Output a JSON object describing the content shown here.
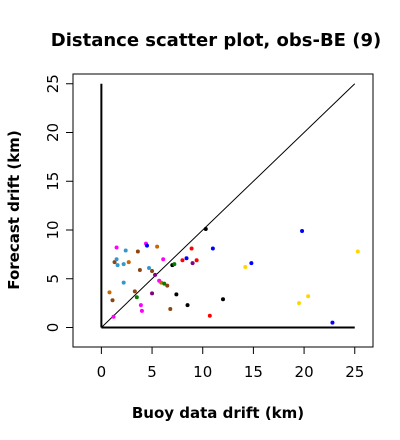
{
  "chart_data": {
    "type": "scatter",
    "title": "Distance scatter plot, obs-BE (9)",
    "xlabel": "Buoy data drift (km)",
    "ylabel": "Forecast drift (km)",
    "xlim": [
      -2.8,
      26.8
    ],
    "ylim": [
      -2.0,
      26.0
    ],
    "x_ticks": [
      0,
      5,
      10,
      15,
      20,
      25
    ],
    "y_ticks": [
      0,
      5,
      10,
      15,
      20,
      25
    ],
    "x_tick_labels": [
      "0",
      "5",
      "10",
      "15",
      "20",
      "25"
    ],
    "y_tick_labels": [
      "0",
      "5",
      "10",
      "15",
      "20",
      "25"
    ],
    "grid": false,
    "reference_lines": [
      {
        "kind": "identity",
        "from": [
          0,
          0
        ],
        "to": [
          25,
          25
        ],
        "color": "#000000"
      },
      {
        "kind": "vertical-axis",
        "from": [
          0,
          0
        ],
        "to": [
          0,
          25
        ],
        "color": "#000000"
      },
      {
        "kind": "horizontal-axis",
        "from": [
          0,
          0
        ],
        "to": [
          25,
          0
        ],
        "color": "#000000"
      }
    ],
    "points": [
      {
        "x": 1.5,
        "y": 8.2,
        "color": "#ff00ff"
      },
      {
        "x": 2.4,
        "y": 7.9,
        "color": "#3399cc"
      },
      {
        "x": 3.6,
        "y": 7.8,
        "color": "#8b4513"
      },
      {
        "x": 4.4,
        "y": 8.6,
        "color": "#ff00ff"
      },
      {
        "x": 4.5,
        "y": 8.4,
        "color": "#0000ff"
      },
      {
        "x": 5.5,
        "y": 8.3,
        "color": "#cc6600"
      },
      {
        "x": 6.1,
        "y": 7.0,
        "color": "#ff00ff"
      },
      {
        "x": 1.3,
        "y": 6.7,
        "color": "#8b4513"
      },
      {
        "x": 1.6,
        "y": 6.4,
        "color": "#3399cc"
      },
      {
        "x": 1.5,
        "y": 7.0,
        "color": "#3399cc"
      },
      {
        "x": 2.2,
        "y": 6.5,
        "color": "#3399cc"
      },
      {
        "x": 2.7,
        "y": 6.7,
        "color": "#cc6600"
      },
      {
        "x": 4.7,
        "y": 6.1,
        "color": "#3399cc"
      },
      {
        "x": 5.0,
        "y": 5.8,
        "color": "#8b4513"
      },
      {
        "x": 5.3,
        "y": 5.4,
        "color": "#800080"
      },
      {
        "x": 3.8,
        "y": 5.9,
        "color": "#8b4513"
      },
      {
        "x": 7.0,
        "y": 6.4,
        "color": "#000000"
      },
      {
        "x": 7.2,
        "y": 6.5,
        "color": "#008000"
      },
      {
        "x": 8.0,
        "y": 6.9,
        "color": "#ff0000"
      },
      {
        "x": 8.4,
        "y": 7.1,
        "color": "#0000ff"
      },
      {
        "x": 9.0,
        "y": 6.6,
        "color": "#800080"
      },
      {
        "x": 9.4,
        "y": 6.9,
        "color": "#ff0000"
      },
      {
        "x": 8.9,
        "y": 8.1,
        "color": "#ff0000"
      },
      {
        "x": 11.0,
        "y": 8.1,
        "color": "#0000ff"
      },
      {
        "x": 10.3,
        "y": 10.1,
        "color": "#000000"
      },
      {
        "x": 19.8,
        "y": 9.9,
        "color": "#0000ff"
      },
      {
        "x": 25.3,
        "y": 7.8,
        "color": "#ffd700"
      },
      {
        "x": 14.8,
        "y": 6.6,
        "color": "#0000ff"
      },
      {
        "x": 14.2,
        "y": 6.2,
        "color": "#ffd700"
      },
      {
        "x": 5.7,
        "y": 4.8,
        "color": "#ff00ff"
      },
      {
        "x": 5.9,
        "y": 4.6,
        "color": "#cc6600"
      },
      {
        "x": 6.2,
        "y": 4.5,
        "color": "#008000"
      },
      {
        "x": 6.5,
        "y": 4.3,
        "color": "#8b4513"
      },
      {
        "x": 2.2,
        "y": 4.6,
        "color": "#3399cc"
      },
      {
        "x": 0.8,
        "y": 3.6,
        "color": "#cc6600"
      },
      {
        "x": 3.3,
        "y": 3.7,
        "color": "#8b4513"
      },
      {
        "x": 5.0,
        "y": 3.5,
        "color": "#800080"
      },
      {
        "x": 7.4,
        "y": 3.4,
        "color": "#000000"
      },
      {
        "x": 12.0,
        "y": 2.9,
        "color": "#000000"
      },
      {
        "x": 3.5,
        "y": 3.1,
        "color": "#008000"
      },
      {
        "x": 1.1,
        "y": 2.8,
        "color": "#8b4513"
      },
      {
        "x": 3.9,
        "y": 2.3,
        "color": "#ff00ff"
      },
      {
        "x": 6.8,
        "y": 1.9,
        "color": "#8b4513"
      },
      {
        "x": 8.5,
        "y": 2.3,
        "color": "#000000"
      },
      {
        "x": 1.2,
        "y": 1.1,
        "color": "#ff00ff"
      },
      {
        "x": 4.0,
        "y": 1.7,
        "color": "#ff00ff"
      },
      {
        "x": 10.7,
        "y": 1.2,
        "color": "#ff0000"
      },
      {
        "x": 20.4,
        "y": 3.2,
        "color": "#ffd700"
      },
      {
        "x": 19.5,
        "y": 2.5,
        "color": "#ffd700"
      },
      {
        "x": 22.8,
        "y": 0.5,
        "color": "#0000ff"
      }
    ]
  }
}
